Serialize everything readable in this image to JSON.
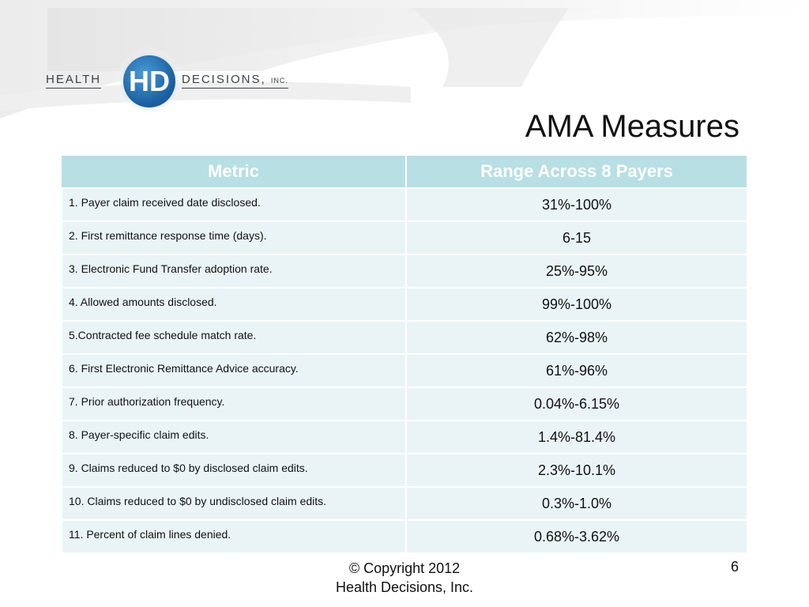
{
  "logo": {
    "text_left": "HEALTH",
    "monogram": "HD",
    "text_right": "DECISIONS,",
    "text_right_suffix": "INC."
  },
  "slide": {
    "title": "AMA Measures",
    "page_number": "6"
  },
  "table": {
    "headers": [
      "Metric",
      "Range Across 8 Payers"
    ],
    "rows": [
      {
        "metric": "1. Payer claim received date disclosed.",
        "range": "31%-100%"
      },
      {
        "metric": "2. First remittance response time (days).",
        "range": "6-15"
      },
      {
        "metric": "3. Electronic Fund Transfer adoption rate.",
        "range": "25%-95%"
      },
      {
        "metric": "4. Allowed amounts disclosed.",
        "range": "99%-100%"
      },
      {
        "metric": "5.Contracted fee schedule match rate.",
        "range": "62%-98%"
      },
      {
        "metric": "6. First Electronic Remittance Advice accuracy.",
        "range": "61%-96%"
      },
      {
        "metric": "7. Prior authorization frequency.",
        "range": "0.04%-6.15%"
      },
      {
        "metric": "8. Payer-specific claim edits.",
        "range": "1.4%-81.4%"
      },
      {
        "metric": "9. Claims reduced to $0 by disclosed claim edits.",
        "range": "2.3%-10.1%"
      },
      {
        "metric": "10. Claims reduced to $0 by undisclosed claim  edits.",
        "range": "0.3%-1.0%"
      },
      {
        "metric": "11. Percent of claim lines denied.",
        "range": "0.68%-3.62%"
      }
    ]
  },
  "footer": {
    "line1": "© Copyright 2012",
    "line2": "Health Decisions, Inc."
  },
  "colors": {
    "header_bg": "#b7dfe4",
    "row_bg": "#eaf4f6",
    "logo_blue": "#1f6fb2"
  }
}
